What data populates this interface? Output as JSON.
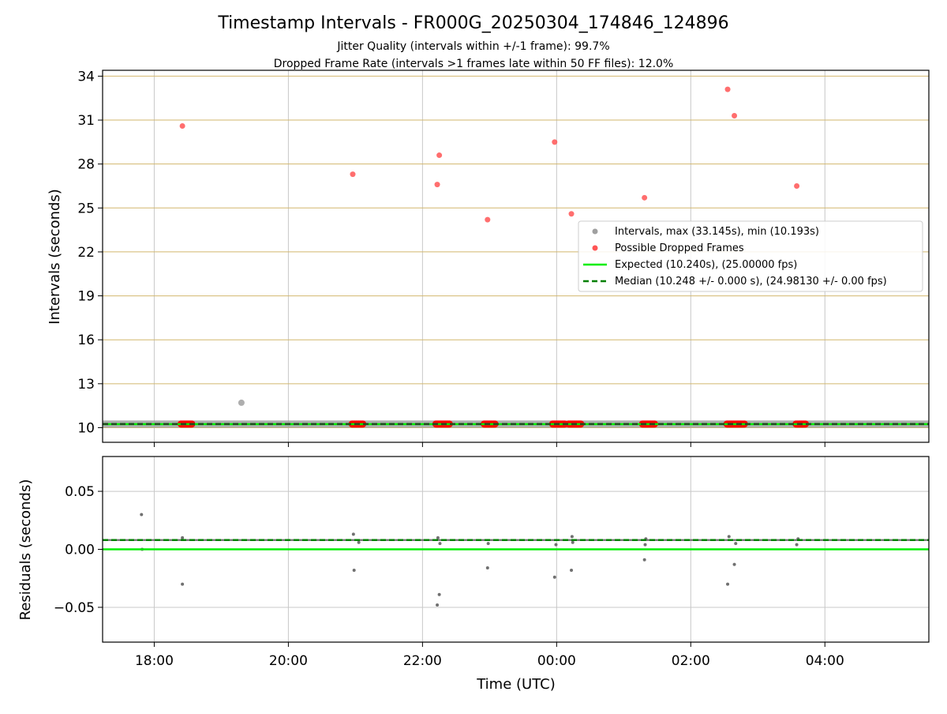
{
  "chart_data": {
    "title": "Timestamp Intervals - FR000G_20250304_174846_124896",
    "subtitle_lines": [
      "Jitter Quality (intervals within +/-1 frame): 99.7%",
      "Dropped Frame Rate (intervals >1 frames late within 50 FF files): 12.0%"
    ],
    "xlabel": "Time (UTC)",
    "x_unit": "hours since 18:00 (UTC)",
    "xlim": [
      -0.77,
      11.55
    ],
    "x_ticks": [
      0,
      2,
      4,
      6,
      8,
      10
    ],
    "x_tick_labels": [
      "18:00",
      "20:00",
      "22:00",
      "00:00",
      "02:00",
      "04:00"
    ],
    "panels": [
      {
        "name": "intervals",
        "type": "scatter",
        "ylabel": "Intervals (seconds)",
        "ylim": [
          9.0,
          34.4
        ],
        "y_ticks": [
          10,
          13,
          16,
          19,
          22,
          25,
          28,
          31,
          34
        ],
        "y_tick_labels": [
          "10",
          "13",
          "16",
          "19",
          "22",
          "25",
          "28",
          "31",
          "34"
        ],
        "grid": "x gray, y goldenrod",
        "legend_position": "right-middle",
        "series": [
          {
            "name": "Intervals, max (33.145s), min (10.193s)",
            "color": "#a0a0a0",
            "x_range": [
              -0.77,
              11.55
            ],
            "baseline_y": 10.248,
            "outliers": [
              {
                "x": 1.3,
                "y": 11.7
              }
            ]
          },
          {
            "name": "Possible Dropped Frames",
            "color": "#ff0000",
            "points": [
              {
                "x": 0.42,
                "y": 30.6
              },
              {
                "x": 2.96,
                "y": 27.3
              },
              {
                "x": 4.22,
                "y": 26.6
              },
              {
                "x": 4.25,
                "y": 28.6
              },
              {
                "x": 4.97,
                "y": 24.2
              },
              {
                "x": 5.97,
                "y": 29.5
              },
              {
                "x": 6.22,
                "y": 24.6
              },
              {
                "x": 7.31,
                "y": 25.7
              },
              {
                "x": 8.55,
                "y": 33.1
              },
              {
                "x": 8.65,
                "y": 31.3
              },
              {
                "x": 9.58,
                "y": 26.5
              }
            ],
            "baseline_clusters": [
              [
                0.4,
                0.57
              ],
              [
                2.95,
                3.12
              ],
              [
                4.2,
                4.4
              ],
              [
                4.92,
                5.08
              ],
              [
                5.94,
                6.12
              ],
              [
                6.18,
                6.37
              ],
              [
                7.28,
                7.46
              ],
              [
                8.54,
                8.8
              ],
              [
                9.57,
                9.72
              ]
            ],
            "baseline_y": 10.248
          },
          {
            "name": "Expected (10.240s), (25.00000 fps)",
            "type": "line",
            "y": 10.24,
            "color": "#00ee00",
            "style": "solid"
          },
          {
            "name": "Median (10.248 +/- 0.000 s), (24.98130 +/- 0.00 fps)",
            "type": "line",
            "y": 10.248,
            "color": "#008000",
            "style": "dashed"
          }
        ]
      },
      {
        "name": "residuals",
        "type": "scatter",
        "ylabel": "Residuals (seconds)",
        "ylim": [
          -0.08,
          0.08
        ],
        "y_ticks": [
          0.05,
          0.0,
          -0.05
        ],
        "y_tick_labels": [
          "0.05",
          "0.00",
          "−0.05"
        ],
        "grid": "both gray",
        "series": [
          {
            "name": "residuals",
            "color": "#707070",
            "baseline_y": 0.008,
            "points": [
              {
                "x": -0.19,
                "y": 0.03
              },
              {
                "x": -0.18,
                "y": 0.0
              },
              {
                "x": 0.42,
                "y": -0.03
              },
              {
                "x": 0.42,
                "y": 0.01
              },
              {
                "x": 2.97,
                "y": 0.013
              },
              {
                "x": 2.98,
                "y": -0.018
              },
              {
                "x": 3.05,
                "y": 0.006
              },
              {
                "x": 4.22,
                "y": -0.048
              },
              {
                "x": 4.25,
                "y": -0.039
              },
              {
                "x": 4.23,
                "y": 0.01
              },
              {
                "x": 4.26,
                "y": 0.005
              },
              {
                "x": 4.97,
                "y": -0.016
              },
              {
                "x": 4.98,
                "y": 0.005
              },
              {
                "x": 5.97,
                "y": -0.024
              },
              {
                "x": 5.99,
                "y": 0.004
              },
              {
                "x": 6.22,
                "y": -0.018
              },
              {
                "x": 6.23,
                "y": 0.011
              },
              {
                "x": 6.24,
                "y": 0.006
              },
              {
                "x": 7.31,
                "y": -0.009
              },
              {
                "x": 7.32,
                "y": 0.004
              },
              {
                "x": 7.33,
                "y": 0.009
              },
              {
                "x": 8.55,
                "y": -0.03
              },
              {
                "x": 8.57,
                "y": 0.011
              },
              {
                "x": 8.65,
                "y": -0.013
              },
              {
                "x": 8.67,
                "y": 0.005
              },
              {
                "x": 9.58,
                "y": 0.004
              },
              {
                "x": 9.6,
                "y": 0.009
              }
            ]
          },
          {
            "name": "expected-residual",
            "type": "line",
            "y": 0.0,
            "color": "#00ee00",
            "style": "solid"
          },
          {
            "name": "median-residual",
            "type": "line",
            "y": 0.008,
            "color": "#008000",
            "style": "dashed"
          }
        ]
      }
    ]
  }
}
